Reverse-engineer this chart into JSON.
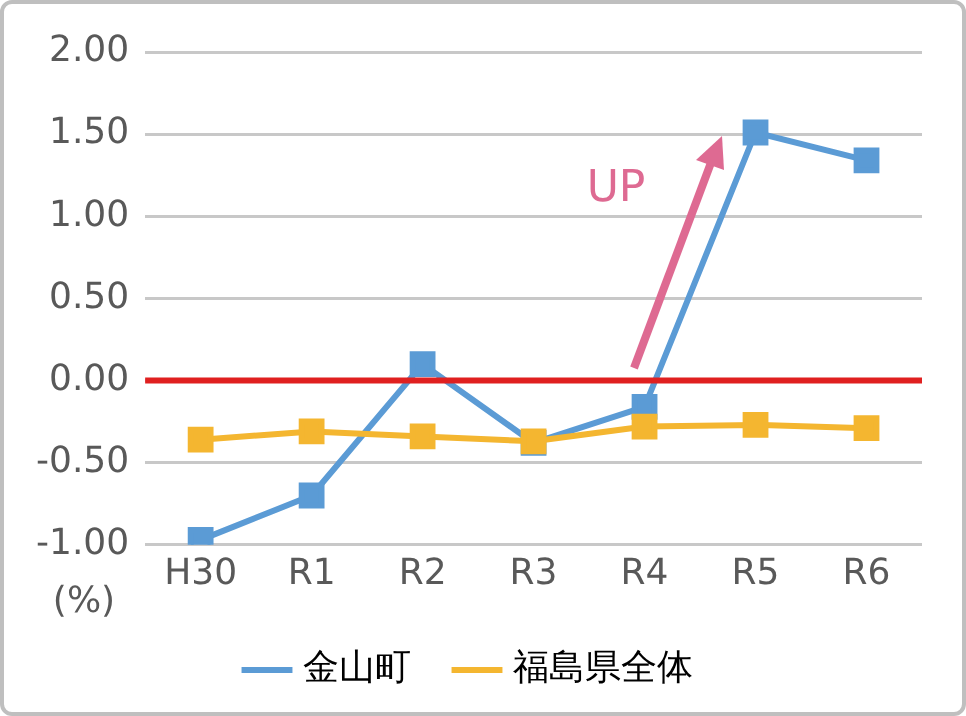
{
  "chart_data": {
    "type": "line",
    "ylabel": "(%)",
    "categories": [
      "H30",
      "R1",
      "R2",
      "R3",
      "R4",
      "R5",
      "R6"
    ],
    "series": [
      {
        "name": "金山町",
        "color": "#5b9bd5",
        "values": [
          -0.97,
          -0.7,
          0.1,
          -0.38,
          -0.16,
          1.51,
          1.34
        ]
      },
      {
        "name": "福島県全体",
        "color": "#f4b630",
        "values": [
          -0.36,
          -0.31,
          -0.34,
          -0.37,
          -0.28,
          -0.27,
          -0.29
        ]
      }
    ],
    "ylim": [
      -1,
      2
    ],
    "yticks": [
      {
        "value": -1,
        "label": "-1.00"
      },
      {
        "value": -0.5,
        "label": "-0.50"
      },
      {
        "value": 0,
        "label": "0.00"
      },
      {
        "value": 0.5,
        "label": "0.50"
      },
      {
        "value": 1,
        "label": "1.00"
      },
      {
        "value": 1.5,
        "label": "1.50"
      },
      {
        "value": 2,
        "label": "2.00"
      }
    ],
    "ref_lines": [
      {
        "axis": "y",
        "value": 0,
        "color": "#e02020"
      }
    ],
    "annotations": [
      "UP"
    ],
    "grid": "y",
    "legend": "bottom",
    "marker": "square",
    "line_style": "solid"
  }
}
